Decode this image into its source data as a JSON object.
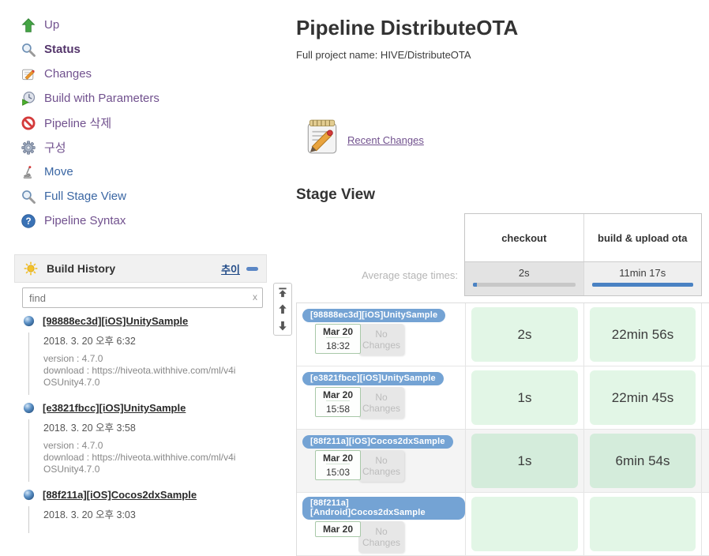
{
  "sidebar": {
    "items": [
      {
        "label": "Up"
      },
      {
        "label": "Status"
      },
      {
        "label": "Changes"
      },
      {
        "label": "Build with Parameters"
      },
      {
        "label": "Pipeline 삭제"
      },
      {
        "label": "구성"
      },
      {
        "label": "Move"
      },
      {
        "label": "Full Stage View"
      },
      {
        "label": "Pipeline Syntax"
      }
    ]
  },
  "build_history": {
    "title": "Build History",
    "trend_link": "추이",
    "search_placeholder": "find",
    "clear_button": "x",
    "builds": [
      {
        "name": "[98888ec3d][iOS]UnitySample",
        "timestamp": "2018. 3. 20 오후 6:32",
        "line1": "version : 4.7.0",
        "line2": "download : https://hiveota.withhive.com/ml/v4iOSUnity4.7.0"
      },
      {
        "name": "[e3821fbcc][iOS]UnitySample",
        "timestamp": "2018. 3. 20 오후 3:58",
        "line1": "version : 4.7.0",
        "line2": "download : https://hiveota.withhive.com/ml/v4iOSUnity4.7.0"
      },
      {
        "name": "[88f211a][iOS]Cocos2dxSample",
        "timestamp": "2018. 3. 20 오후 3:03",
        "line1": "",
        "line2": ""
      }
    ]
  },
  "main": {
    "title": "Pipeline DistributeOTA",
    "full_name": "Full project name: HIVE/DistributeOTA",
    "recent_changes": "Recent Changes",
    "stage_view": "Stage View"
  },
  "stage_view": {
    "avg_label": "Average stage times:",
    "columns": [
      {
        "name": "checkout",
        "avg": "2s",
        "bar_fill_pct": 4
      },
      {
        "name": "build & upload ota",
        "avg": "11min 17s",
        "bar_fill_pct": 100
      }
    ],
    "runs": [
      {
        "badge": "[98888ec3d][iOS]UnitySample",
        "date": "Mar 20",
        "time": "18:32",
        "changes": "No Changes",
        "checkout": "2s",
        "build": "22min 56s"
      },
      {
        "badge": "[e3821fbcc][iOS]UnitySample",
        "date": "Mar 20",
        "time": "15:58",
        "changes": "No Changes",
        "checkout": "1s",
        "build": "22min 45s"
      },
      {
        "badge": "[88f211a][iOS]Cocos2dxSample",
        "date": "Mar 20",
        "time": "15:03",
        "changes": "No Changes",
        "checkout": "1s",
        "build": "6min 54s"
      },
      {
        "badge": "[88f211a][Android]Cocos2dxSample",
        "date": "Mar 20",
        "time": "",
        "changes": "No Changes",
        "checkout": "",
        "build": ""
      }
    ]
  },
  "colors": {
    "link_purple": "#71518e",
    "link_blue": "#3a66a3",
    "badge_blue": "#74a3d4",
    "bar_blue": "#4a82c3",
    "cell_green": "#e2f6e6",
    "cell_green_alt": "#d4ecdb"
  }
}
